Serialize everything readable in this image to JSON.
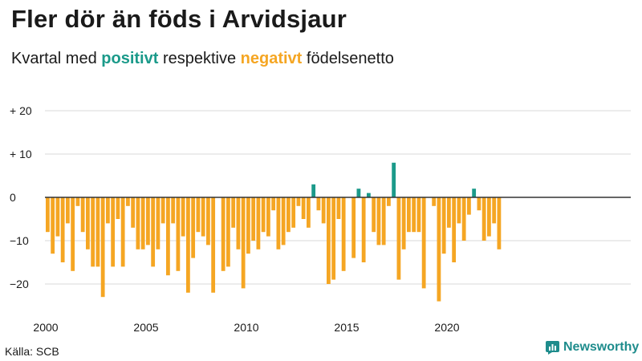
{
  "title": "Fler dör än föds i Arvidsjaur",
  "subtitle": {
    "pre": "Kvartal med ",
    "positive_word": "positivt",
    "mid": " respektive ",
    "negative_word": "negativt",
    "post": " födelsenetto"
  },
  "source": "Källa: SCB",
  "brand": "Newsworthy",
  "colors": {
    "positive": "#1b9a8a",
    "negative": "#f5a623",
    "grid": "#d9d9d9",
    "zero": "#333333"
  },
  "chart_data": {
    "type": "bar",
    "title": "Fler dör än föds i Arvidsjaur",
    "xlabel": "",
    "ylabel": "",
    "ylim": [
      -25,
      20
    ],
    "grid": true,
    "y_ticks": [
      {
        "value": 20,
        "label": "+ 20"
      },
      {
        "value": 10,
        "label": "+ 10"
      },
      {
        "value": 0,
        "label": "0"
      },
      {
        "value": -10,
        "label": "−10"
      },
      {
        "value": -20,
        "label": "−20"
      }
    ],
    "x_ticks": [
      {
        "year": 2000,
        "label": "2000"
      },
      {
        "year": 2005,
        "label": "2005"
      },
      {
        "year": 2010,
        "label": "2010"
      },
      {
        "year": 2015,
        "label": "2015"
      },
      {
        "year": 2020,
        "label": "2020"
      }
    ],
    "start_year": 2000,
    "quarters_per_year": 4,
    "categories": [
      "2000Q1",
      "2000Q2",
      "2000Q3",
      "2000Q4",
      "2001Q1",
      "2001Q2",
      "2001Q3",
      "2001Q4",
      "2002Q1",
      "2002Q2",
      "2002Q3",
      "2002Q4",
      "2003Q1",
      "2003Q2",
      "2003Q3",
      "2003Q4",
      "2004Q1",
      "2004Q2",
      "2004Q3",
      "2004Q4",
      "2005Q1",
      "2005Q2",
      "2005Q3",
      "2005Q4",
      "2006Q1",
      "2006Q2",
      "2006Q3",
      "2006Q4",
      "2007Q1",
      "2007Q2",
      "2007Q3",
      "2007Q4",
      "2008Q1",
      "2008Q2",
      "2008Q3",
      "2008Q4",
      "2009Q1",
      "2009Q2",
      "2009Q3",
      "2009Q4",
      "2010Q1",
      "2010Q2",
      "2010Q3",
      "2010Q4",
      "2011Q1",
      "2011Q2",
      "2011Q3",
      "2011Q4",
      "2012Q1",
      "2012Q2",
      "2012Q3",
      "2012Q4",
      "2013Q1",
      "2013Q2",
      "2013Q3",
      "2013Q4",
      "2014Q1",
      "2014Q2",
      "2014Q3",
      "2014Q4",
      "2015Q1",
      "2015Q2",
      "2015Q3",
      "2015Q4",
      "2016Q1",
      "2016Q2",
      "2016Q3",
      "2016Q4",
      "2017Q1",
      "2017Q2",
      "2017Q3",
      "2017Q4",
      "2018Q1",
      "2018Q2",
      "2018Q3",
      "2018Q4",
      "2019Q1",
      "2019Q2",
      "2019Q3",
      "2019Q4",
      "2020Q1",
      "2020Q2",
      "2020Q3",
      "2020Q4",
      "2021Q1",
      "2021Q2",
      "2021Q3",
      "2021Q4",
      "2022Q1",
      "2022Q2",
      "2022Q3",
      "2022Q4",
      "2023Q1",
      "2023Q2",
      "2023Q3",
      "2023Q4"
    ],
    "values": [
      -8,
      -13,
      -9,
      -15,
      -6,
      -17,
      -2,
      -8,
      -12,
      -16,
      -16,
      -23,
      -6,
      -16,
      -5,
      -16,
      -2,
      -7,
      -12,
      -12,
      -11,
      -16,
      -12,
      -6,
      -18,
      -6,
      -17,
      -9,
      -22,
      -14,
      -8,
      -9,
      -11,
      -22,
      0,
      -17,
      -16,
      -7,
      -12,
      -21,
      -13,
      -10,
      -12,
      -8,
      -9,
      -3,
      -12,
      -11,
      -8,
      -7,
      -2,
      -5,
      -7,
      3,
      -3,
      -6,
      -20,
      -19,
      -5,
      -17,
      0,
      -14,
      2,
      -15,
      1,
      -8,
      -11,
      -11,
      -2,
      8,
      -19,
      -12,
      -8,
      -8,
      -8,
      -21,
      0,
      -2,
      -24,
      -13,
      -7,
      -15,
      -6,
      -10,
      -4,
      2,
      -3,
      -10,
      -9,
      -6,
      -12,
      0,
      0,
      0,
      0,
      0
    ]
  }
}
